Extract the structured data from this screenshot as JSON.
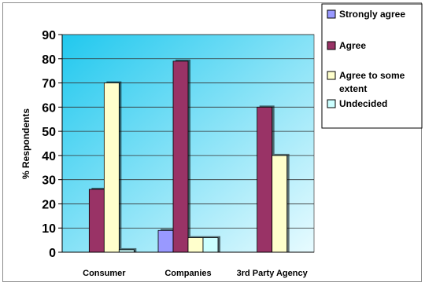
{
  "chart_data": {
    "type": "bar",
    "title": "",
    "xlabel": "",
    "ylabel": "% Respondents",
    "ylim": [
      0,
      90
    ],
    "yticks": [
      0,
      10,
      20,
      30,
      40,
      50,
      60,
      70,
      80,
      90
    ],
    "grid": true,
    "legend_position": "right",
    "categories": [
      "Consumer",
      "Companies",
      "3rd Party Agency"
    ],
    "series": [
      {
        "name": "Strongly agree",
        "color": "#9999ff",
        "values": [
          0,
          9,
          0
        ]
      },
      {
        "name": "Agree",
        "color": "#993366",
        "values": [
          26,
          79,
          60
        ]
      },
      {
        "name": "Agree to some extent",
        "color": "#ffffcc",
        "values": [
          70,
          6,
          40
        ]
      },
      {
        "name": "Undecided",
        "color": "#ccffff",
        "values": [
          1,
          6,
          0
        ]
      }
    ],
    "plot_background": [
      "#21c8ee",
      "#e8fbff"
    ]
  }
}
